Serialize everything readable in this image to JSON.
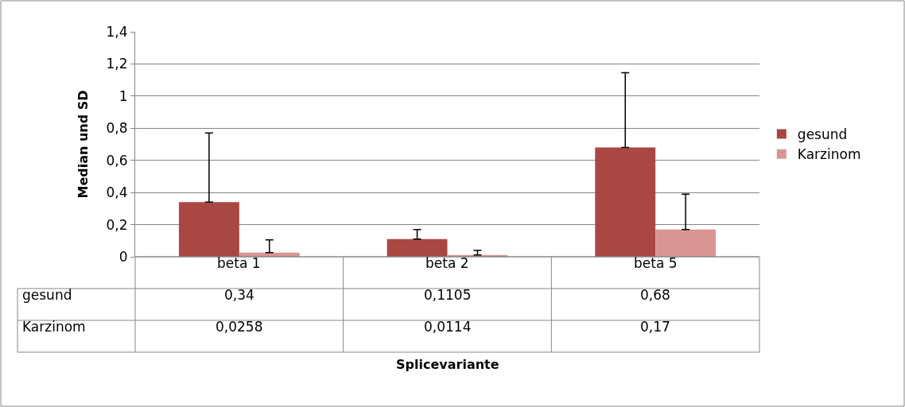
{
  "chart_data": {
    "type": "bar",
    "annotations": [
      "Splicevariante"
    ],
    "ylabel": "Median und SD",
    "categories": [
      "beta 1",
      "beta 2",
      "beta 5"
    ],
    "series": [
      {
        "name": "gesund",
        "color": "#a94744",
        "values": [
          0.34,
          0.1105,
          0.68
        ],
        "value_labels": [
          "0,34",
          "0,1105",
          "0,68"
        ],
        "errors": [
          [
            0.34,
            0.77
          ],
          [
            0.1105,
            0.17
          ],
          [
            0.68,
            1.145
          ]
        ]
      },
      {
        "name": "Karzinom",
        "color": "#d99594",
        "values": [
          0.0258,
          0.0114,
          0.17
        ],
        "value_labels": [
          "0,0258",
          "0,0114",
          "0,17"
        ],
        "errors": [
          [
            0.0258,
            0.105
          ],
          [
            0.0114,
            0.04
          ],
          [
            0.17,
            0.39
          ]
        ]
      }
    ],
    "ylim": [
      0,
      1.4
    ],
    "yticks": [
      0,
      {
        "value": 0.2,
        "label": "0,2"
      },
      {
        "value": 0.4,
        "label": "0,4"
      },
      {
        "value": 0.6,
        "label": "0,6"
      },
      {
        "value": 0.8,
        "label": "0,8"
      },
      1,
      {
        "value": 1.2,
        "label": "1,2"
      },
      {
        "value": 1.4,
        "label": "1,4"
      }
    ],
    "grid": "y",
    "legend": "right"
  }
}
